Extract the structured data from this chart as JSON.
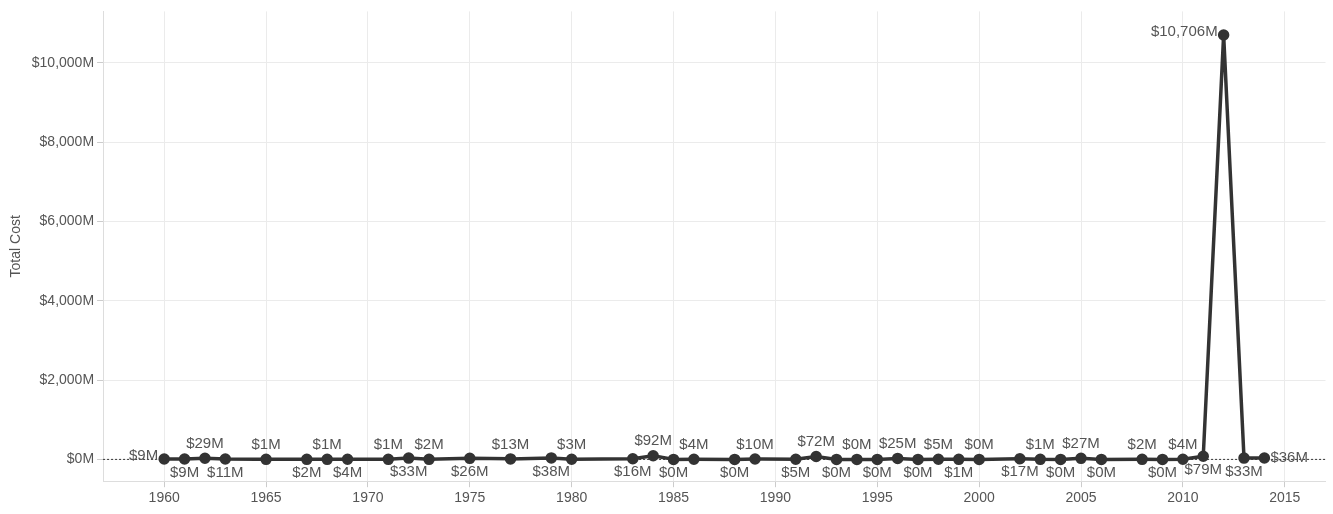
{
  "chart_data": {
    "type": "line",
    "ylabel": "Total Cost",
    "x": [
      1960,
      1961,
      1962,
      1963,
      1965,
      1967,
      1968,
      1969,
      1971,
      1972,
      1973,
      1975,
      1977,
      1979,
      1980,
      1983,
      1984,
      1985,
      1986,
      1988,
      1989,
      1991,
      1992,
      1993,
      1994,
      1995,
      1996,
      1997,
      1998,
      1999,
      2000,
      2002,
      2003,
      2004,
      2005,
      2006,
      2008,
      2009,
      2010,
      2011,
      2012,
      2013,
      2014
    ],
    "series": [
      {
        "color": "#333333",
        "values": [
          9,
          9,
          29,
          11,
          1,
          2,
          1,
          4,
          1,
          33,
          2,
          26,
          13,
          38,
          3,
          16,
          92,
          0,
          4,
          0,
          10,
          5,
          72,
          0,
          0,
          0,
          25,
          0,
          5,
          1,
          0,
          17,
          1,
          0,
          27,
          0,
          2,
          0,
          4,
          79,
          10706,
          33,
          36
        ],
        "value_labels": [
          "$9M",
          "$9M",
          "$29M",
          "$11M",
          "$1M",
          "$2M",
          "$1M",
          "$4M",
          "$1M",
          "$33M",
          "$2M",
          "$26M",
          "$13M",
          "$38M",
          "$3M",
          "$16M",
          "$92M",
          "$0M",
          "$4M",
          "$0M",
          "$10M",
          "$5M",
          "$72M",
          "$0M",
          "$0M",
          "$0M",
          "$25M",
          "$0M",
          "$5M",
          "$1M",
          "$0M",
          "$17M",
          "$1M",
          "$0M",
          "$27M",
          "$0M",
          "$2M",
          "$0M",
          "$4M",
          "$79M",
          "$10,706M",
          "$33M",
          "$36M"
        ]
      }
    ],
    "xlim": [
      1957,
      2017
    ],
    "xticks": [
      1960,
      1965,
      1970,
      1975,
      1980,
      1985,
      1990,
      1995,
      2000,
      2005,
      2010,
      2015
    ],
    "ylim": [
      -550,
      11300
    ],
    "yticks": [
      {
        "value": 0,
        "label": "$0M"
      },
      {
        "value": 2000,
        "label": "$2,000M"
      },
      {
        "value": 4000,
        "label": "$4,000M"
      },
      {
        "value": 6000,
        "label": "$6,000M"
      },
      {
        "value": 8000,
        "label": "$8,000M"
      },
      {
        "value": 10000,
        "label": "$10,000M"
      }
    ],
    "ref_lines": [
      {
        "axis": "y",
        "value": 0,
        "color": "#333333",
        "line_style": "dotted"
      }
    ],
    "grid": true,
    "legend": false,
    "marker": "circle",
    "line_style": "solid"
  }
}
